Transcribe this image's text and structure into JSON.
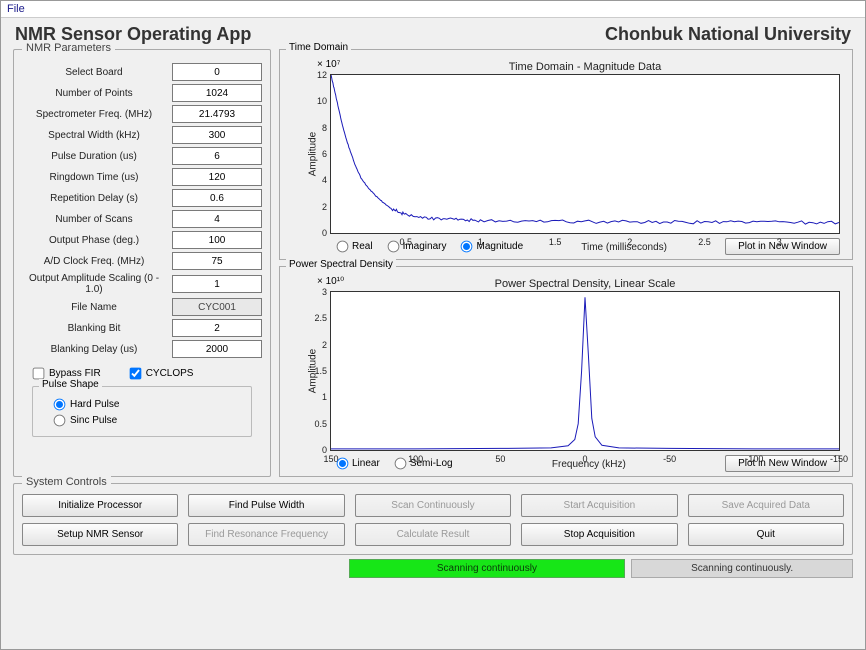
{
  "menu": {
    "file": "File"
  },
  "header": {
    "app_title": "NMR Sensor Operating App",
    "university": "Chonbuk National University"
  },
  "panels": {
    "nmr_params_title": "NMR Parameters",
    "time_domain_title": "Time Domain",
    "psd_title": "Power Spectral Density",
    "system_controls_title": "System Controls",
    "pulse_shape_title": "Pulse Shape"
  },
  "params": [
    {
      "label": "Select Board",
      "value": "0"
    },
    {
      "label": "Number of Points",
      "value": "1024"
    },
    {
      "label": "Spectrometer Freq. (MHz)",
      "value": "21.4793"
    },
    {
      "label": "Spectral Width (kHz)",
      "value": "300"
    },
    {
      "label": "Pulse Duration (us)",
      "value": "6"
    },
    {
      "label": "Ringdown Time (us)",
      "value": "120"
    },
    {
      "label": "Repetition Delay (s)",
      "value": "0.6"
    },
    {
      "label": "Number of Scans",
      "value": "4"
    },
    {
      "label": "Output Phase (deg.)",
      "value": "100"
    },
    {
      "label": "A/D Clock Freq. (MHz)",
      "value": "75"
    },
    {
      "label": "Output Amplitude Scaling (0 - 1.0)",
      "value": "1"
    },
    {
      "label": "File Name",
      "value": "CYC001",
      "disabled": true
    },
    {
      "label": "Blanking Bit",
      "value": "2"
    },
    {
      "label": "Blanking Delay (us)",
      "value": "2000"
    }
  ],
  "checkboxes": {
    "bypass_fir": {
      "label": "Bypass FIR",
      "checked": false
    },
    "cyclops": {
      "label": "CYCLOPS",
      "checked": true
    }
  },
  "pulse_shape": {
    "hard": "Hard Pulse",
    "sinc": "Sinc Pulse",
    "selected": "hard"
  },
  "time_chart": {
    "type": "line",
    "title": "Time Domain - Magnitude Data",
    "ylabel": "Amplitude",
    "xlabel": "Time (milliseconds)",
    "exp": "× 10⁷",
    "xlim": [
      0,
      3.4
    ],
    "ylim": [
      0,
      12
    ],
    "xticks": [
      0.5,
      1,
      1.5,
      2,
      2.5,
      3
    ],
    "yticks": [
      0,
      2,
      4,
      6,
      8,
      10,
      12
    ],
    "line_color": "#1a1ab8",
    "background_color": "#ffffff",
    "grid_color": "#333333",
    "data": [
      [
        0,
        12
      ],
      [
        0.02,
        11
      ],
      [
        0.05,
        9.5
      ],
      [
        0.08,
        8
      ],
      [
        0.12,
        6.5
      ],
      [
        0.16,
        5.2
      ],
      [
        0.2,
        4.2
      ],
      [
        0.25,
        3.4
      ],
      [
        0.3,
        2.8
      ],
      [
        0.35,
        2.3
      ],
      [
        0.4,
        1.9
      ],
      [
        0.45,
        1.6
      ],
      [
        0.5,
        1.4
      ],
      [
        0.6,
        1.2
      ],
      [
        0.7,
        1.1
      ],
      [
        0.8,
        1.05
      ],
      [
        0.9,
        1.0
      ],
      [
        1.0,
        0.95
      ],
      [
        1.2,
        0.9
      ],
      [
        1.4,
        0.88
      ],
      [
        1.6,
        0.86
      ],
      [
        1.8,
        0.85
      ],
      [
        2.0,
        0.84
      ],
      [
        2.2,
        0.83
      ],
      [
        2.4,
        0.82
      ],
      [
        2.6,
        0.82
      ],
      [
        2.8,
        0.81
      ],
      [
        3.0,
        0.81
      ],
      [
        3.2,
        0.8
      ],
      [
        3.4,
        0.8
      ]
    ],
    "noise_amplitude": 0.25,
    "radios": {
      "options": [
        "Real",
        "Imaginary",
        "Magnitude"
      ],
      "selected": "Magnitude"
    },
    "plot_button": "Plot in New Window"
  },
  "psd_chart": {
    "type": "line",
    "title": "Power Spectral Density, Linear Scale",
    "ylabel": "Amplitude",
    "xlabel": "Frequency (kHz)",
    "exp": "× 10¹⁰",
    "xlim": [
      150,
      -150
    ],
    "ylim": [
      0,
      3
    ],
    "xticks": [
      150,
      100,
      50,
      0,
      -50,
      -100,
      -150
    ],
    "yticks": [
      0,
      0.5,
      1,
      1.5,
      2,
      2.5,
      3
    ],
    "line_color": "#1a1ab8",
    "background_color": "#ffffff",
    "data": [
      [
        150,
        0.02
      ],
      [
        100,
        0.02
      ],
      [
        50,
        0.03
      ],
      [
        20,
        0.04
      ],
      [
        10,
        0.08
      ],
      [
        6,
        0.2
      ],
      [
        4,
        0.5
      ],
      [
        2,
        1.5
      ],
      [
        0,
        2.9
      ],
      [
        -2,
        1.8
      ],
      [
        -4,
        0.6
      ],
      [
        -6,
        0.25
      ],
      [
        -10,
        0.09
      ],
      [
        -20,
        0.04
      ],
      [
        -50,
        0.03
      ],
      [
        -100,
        0.02
      ],
      [
        -150,
        0.02
      ]
    ],
    "radios": {
      "options": [
        "Linear",
        "Semi-Log"
      ],
      "selected": "Linear"
    },
    "plot_button": "Plot in New Window"
  },
  "controls": [
    {
      "label": "Initialize Processor",
      "enabled": true
    },
    {
      "label": "Find Pulse Width",
      "enabled": true
    },
    {
      "label": "Scan Continuously",
      "enabled": false
    },
    {
      "label": "Start Acquisition",
      "enabled": false
    },
    {
      "label": "Save Acquired Data",
      "enabled": false
    },
    {
      "label": "Setup NMR Sensor",
      "enabled": true
    },
    {
      "label": "Find Resonance Frequency",
      "enabled": false
    },
    {
      "label": "Calculate Result",
      "enabled": false
    },
    {
      "label": "Stop Acquisition",
      "enabled": true
    },
    {
      "label": "Quit",
      "enabled": true
    }
  ],
  "status": {
    "green": "Scanning continuously",
    "gray": "Scanning continuously."
  }
}
